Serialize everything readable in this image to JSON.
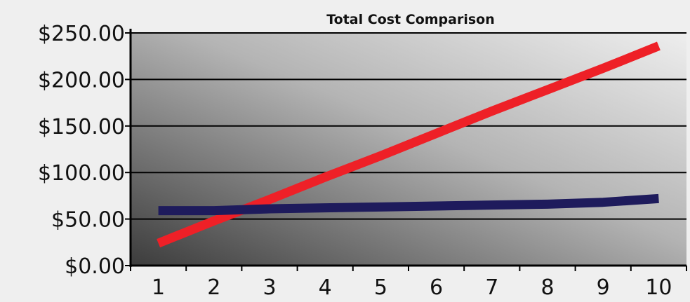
{
  "chart_data": {
    "type": "line",
    "title": "Total Cost Comparison",
    "xlabel": "",
    "ylabel": "",
    "x": [
      1,
      2,
      3,
      4,
      5,
      6,
      7,
      8,
      9,
      10
    ],
    "x_tick_labels": [
      "1",
      "2",
      "3",
      "4",
      "5",
      "6",
      "7",
      "8",
      "9",
      "10"
    ],
    "y_tick_labels": [
      "$0.00",
      "$50.00",
      "$100.00",
      "$150.00",
      "$200.00",
      "$250.00"
    ],
    "y_ticks": [
      0,
      50,
      100,
      150,
      200,
      250
    ],
    "ylim": [
      0,
      250
    ],
    "grid": "horizontal",
    "legend": "none",
    "series": [
      {
        "color": "#ee2027",
        "values": [
          24,
          48,
          71,
          95,
          118,
          142,
          166,
          189,
          212,
          236
        ]
      },
      {
        "color": "#1e1b5c",
        "values": [
          59,
          59,
          61,
          62,
          63,
          64,
          65,
          66,
          68,
          72
        ]
      }
    ],
    "plot_background": "gradient from #3c3c3c (bottom-left) to #eeeeee (top-right)"
  }
}
